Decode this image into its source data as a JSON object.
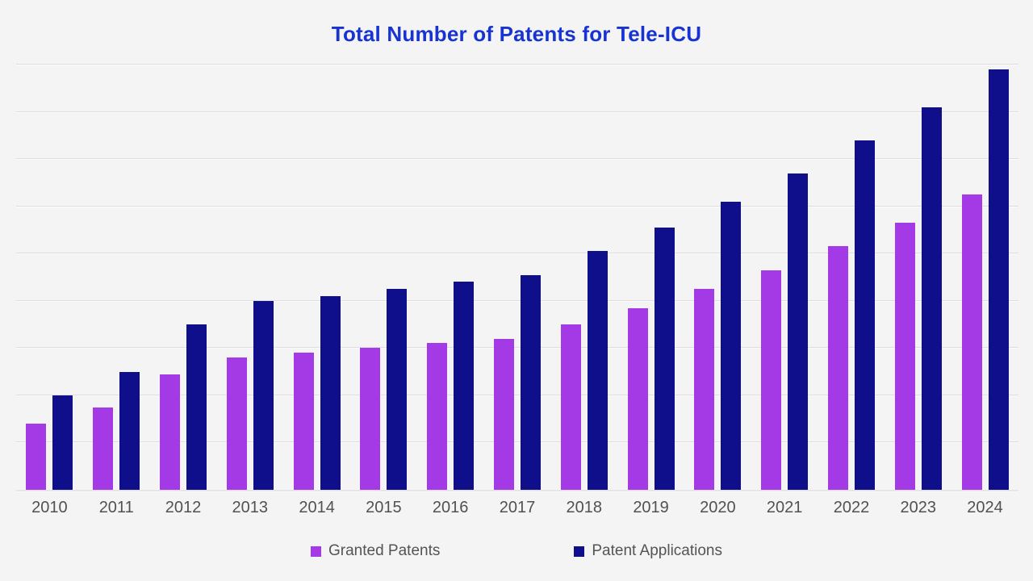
{
  "title": {
    "text": "Total Number of Patents for Tele-ICU"
  },
  "colors": {
    "background": "#f5f4f5",
    "title": "#1734d3",
    "granted": "#a439e6",
    "applications": "#0f0f8c",
    "axis_text": "#515151",
    "legend_text": "#545454",
    "gridline": "#dedce0"
  },
  "chart_data": {
    "type": "bar",
    "title": "Total Number of Patents for Tele-ICU",
    "xlabel": "",
    "ylabel": "",
    "categories": [
      "2010",
      "2011",
      "2012",
      "2013",
      "2014",
      "2015",
      "2016",
      "2017",
      "2018",
      "2019",
      "2020",
      "2021",
      "2022",
      "2023",
      "2024"
    ],
    "series": [
      {
        "name": "Granted Patents",
        "color": "#a439e6",
        "values": [
          140,
          175,
          245,
          280,
          290,
          300,
          310,
          320,
          350,
          385,
          425,
          465,
          515,
          565,
          625
        ]
      },
      {
        "name": "Patent Applications",
        "color": "#0f0f8c",
        "values": [
          200,
          250,
          350,
          400,
          410,
          425,
          440,
          455,
          505,
          555,
          610,
          670,
          740,
          810,
          890
        ]
      }
    ],
    "ylim": [
      0,
      900
    ],
    "gridline_step": 100,
    "grid": true,
    "y_axis_labels_visible": false,
    "legend_position": "bottom"
  }
}
